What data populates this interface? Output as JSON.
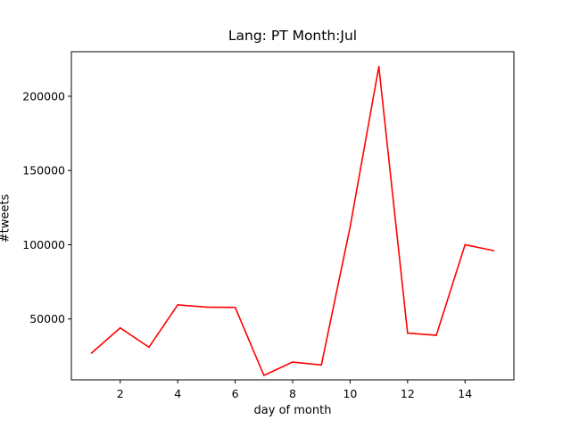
{
  "chart_data": {
    "type": "line",
    "title": "Lang: PT Month:Jul",
    "xlabel": "day of month",
    "ylabel": "#tweets",
    "xlim": [
      0.3,
      15.7
    ],
    "ylim": [
      9000,
      230000
    ],
    "x_ticks": [
      2,
      4,
      6,
      8,
      10,
      12,
      14
    ],
    "y_ticks": [
      50000,
      100000,
      150000,
      200000
    ],
    "grid": false,
    "series": [
      {
        "color": "#ff0000",
        "x": [
          1,
          2,
          3,
          4,
          5,
          6,
          7,
          8,
          9,
          10,
          11,
          12,
          13,
          14,
          15
        ],
        "y": [
          27000,
          44000,
          31000,
          59500,
          58000,
          57800,
          12000,
          21000,
          19000,
          112000,
          220000,
          40500,
          39000,
          100000,
          96000
        ]
      }
    ]
  }
}
